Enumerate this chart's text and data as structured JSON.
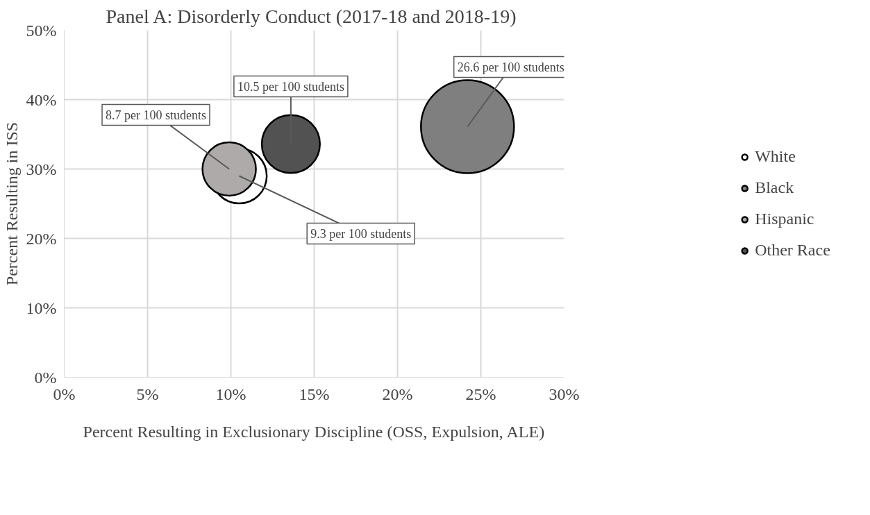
{
  "chart_data": {
    "type": "bubble",
    "title": "Panel A: Disorderly Conduct (2017-18 and 2018-19)",
    "xlabel": "Percent Resulting in Exclusionary Discipline (OSS, Expulsion, ALE)",
    "ylabel": "Percent Resulting in ISS",
    "series": [
      {
        "name": "White",
        "color": "#ffffff",
        "x": [
          10.5
        ],
        "values": [
          29.0
        ],
        "sizes": [
          0.35
        ]
      },
      {
        "name": "Black",
        "color": "#7f7f7f",
        "x": [
          24.2
        ],
        "values": [
          36.1
        ],
        "sizes": [
          1
        ]
      },
      {
        "name": "Hispanic",
        "color": "#aeaaaa",
        "x": [
          9.9
        ],
        "values": [
          30.0
        ],
        "sizes": [
          0.33
        ]
      },
      {
        "name": "Other Race",
        "color": "#525252",
        "x": [
          13.6
        ],
        "values": [
          33.6
        ],
        "sizes": [
          0.39
        ]
      }
    ],
    "annotations": [
      {
        "text": "9.3 per 100 students",
        "x": 10.5,
        "y": 29.0
      },
      {
        "text": "26.6 per 100 students",
        "x": 24.2,
        "y": 36.1
      },
      {
        "text": "8.7 per 100 students",
        "x": 9.9,
        "y": 30.0
      },
      {
        "text": "10.5 per 100 students",
        "x": 13.6,
        "y": 33.6
      }
    ],
    "xlim": [
      0,
      30
    ],
    "ylim": [
      0,
      50
    ],
    "xticks": [
      {
        "value": 0,
        "label": "0%"
      },
      {
        "value": 5,
        "label": "5%"
      },
      {
        "value": 10,
        "label": "10%"
      },
      {
        "value": 15,
        "label": "15%"
      },
      {
        "value": 20,
        "label": "20%"
      },
      {
        "value": 25,
        "label": "25%"
      },
      {
        "value": 30,
        "label": "30%"
      }
    ],
    "yticks": [
      {
        "value": 0,
        "label": "0%"
      },
      {
        "value": 10,
        "label": "10%"
      },
      {
        "value": 20,
        "label": "20%"
      },
      {
        "value": 30,
        "label": "30%"
      },
      {
        "value": 40,
        "label": "40%"
      },
      {
        "value": 50,
        "label": "50%"
      }
    ],
    "grid": true,
    "legend": "right",
    "marker": "circle"
  }
}
